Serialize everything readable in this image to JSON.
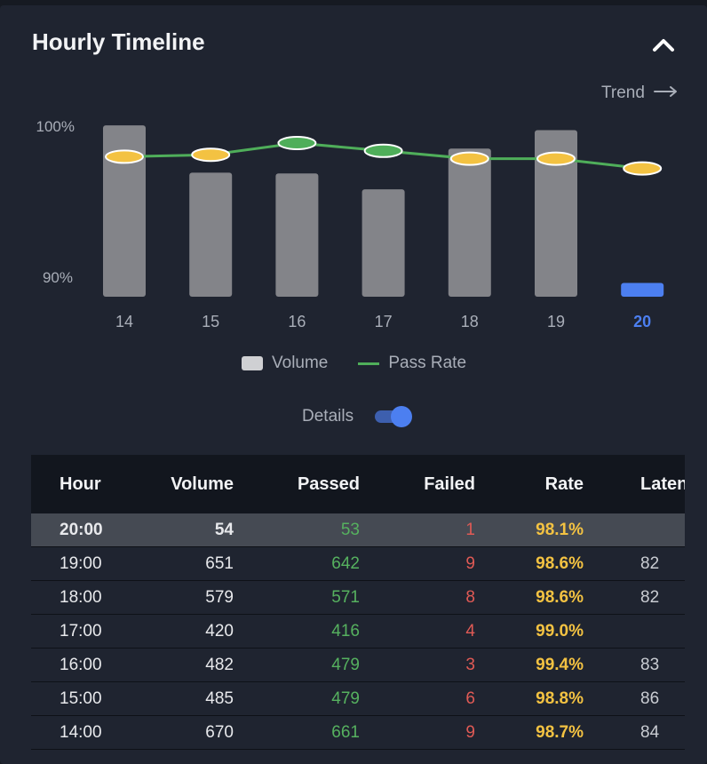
{
  "header": {
    "title": "Hourly Timeline",
    "collapse_icon": "chevron-up-icon"
  },
  "trend_link": {
    "label": "Trend",
    "icon": "arrow-right-icon"
  },
  "chart_data": {
    "type": "bar",
    "categories": [
      "14",
      "15",
      "16",
      "17",
      "18",
      "19",
      "20"
    ],
    "current_category": "20",
    "series": [
      {
        "name": "Volume",
        "type": "bar",
        "values": [
          670,
          485,
          482,
          420,
          579,
          651,
          54
        ]
      },
      {
        "name": "Pass Rate",
        "type": "line",
        "axis": "left",
        "values": [
          98.7,
          98.8,
          99.4,
          99.0,
          98.6,
          98.6,
          98.1
        ]
      }
    ],
    "ylabels": [
      "100%",
      "90%"
    ],
    "colors": {
      "bar": "#838489",
      "bar_current": "#4c7ff0",
      "line": "#4fae5a",
      "marker": "#f3c242",
      "current_tick": "#4c7ff0"
    }
  },
  "legend": {
    "volume_label": "Volume",
    "pass_rate_label": "Pass Rate"
  },
  "details": {
    "label": "Details",
    "enabled": true
  },
  "table": {
    "columns": [
      "Hour",
      "Volume",
      "Passed",
      "Failed",
      "Rate",
      "Latency"
    ],
    "rows": [
      {
        "hour": "20:00",
        "volume": "54",
        "passed": "53",
        "failed": "1",
        "rate": "98.1%",
        "latency": ""
      },
      {
        "hour": "19:00",
        "volume": "651",
        "passed": "642",
        "failed": "9",
        "rate": "98.6%",
        "latency": "82"
      },
      {
        "hour": "18:00",
        "volume": "579",
        "passed": "571",
        "failed": "8",
        "rate": "98.6%",
        "latency": "82"
      },
      {
        "hour": "17:00",
        "volume": "420",
        "passed": "416",
        "failed": "4",
        "rate": "99.0%",
        "latency": ""
      },
      {
        "hour": "16:00",
        "volume": "482",
        "passed": "479",
        "failed": "3",
        "rate": "99.4%",
        "latency": "83"
      },
      {
        "hour": "15:00",
        "volume": "485",
        "passed": "479",
        "failed": "6",
        "rate": "98.8%",
        "latency": "86"
      },
      {
        "hour": "14:00",
        "volume": "670",
        "passed": "661",
        "failed": "9",
        "rate": "98.7%",
        "latency": "84"
      }
    ]
  }
}
